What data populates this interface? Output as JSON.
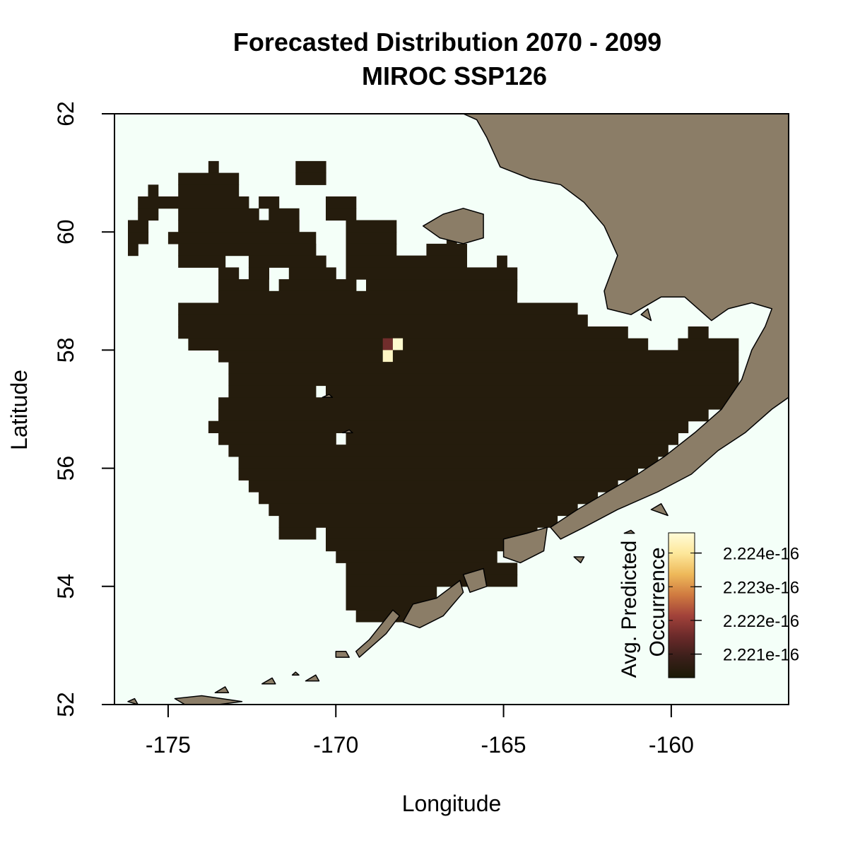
{
  "title": {
    "line1": "Forecasted Distribution 2070 - 2099",
    "line2": "MIROC SSP126"
  },
  "axes": {
    "xlabel": "Longitude",
    "ylabel": "Latitude",
    "xlim": [
      -176.6,
      -156.5
    ],
    "ylim": [
      52,
      62
    ],
    "x_ticks": [
      -175,
      -170,
      -165,
      -160
    ],
    "x_tick_labels": [
      "-175",
      "-170",
      "-165",
      "-160"
    ],
    "y_ticks": [
      52,
      54,
      56,
      58,
      60,
      62
    ],
    "y_tick_labels": [
      "52",
      "54",
      "56",
      "58",
      "60",
      "62"
    ]
  },
  "colors": {
    "ocean": "#f4fff8",
    "land": "#8b7d67",
    "coast_line": "#000000",
    "grid_low": "#1b1a07",
    "grid_mid": "#6b2a2a",
    "grid_high": "#fdf6c0"
  },
  "legend": {
    "title_line1": "Avg. Predicted",
    "title_line2": "Occurrence",
    "placement": "bottom-right",
    "tick_labels": [
      "2.224e-16",
      "2.223e-16",
      "2.222e-16",
      "2.221e-16"
    ],
    "tick_values": [
      2.224e-16,
      2.223e-16,
      2.222e-16,
      2.221e-16
    ],
    "range": [
      2.2203e-16,
      2.2246e-16
    ],
    "colormap": [
      "#1b1a07",
      "#3b1f1a",
      "#6b2a2a",
      "#a2423a",
      "#d07a40",
      "#eeb95a",
      "#fde79a",
      "#fffcd8"
    ]
  },
  "chart_data": {
    "type": "heatmap",
    "title": "Forecasted Distribution 2070 - 2099\nMIROC SSP126",
    "xlabel": "Longitude",
    "ylabel": "Latitude",
    "xlim": [
      -176.6,
      -156.5
    ],
    "ylim": [
      52,
      62
    ],
    "cell_size_deg": {
      "lon": 0.3,
      "lat": 0.2
    },
    "background_value": 2.2205e-16,
    "anomaly_cells": [
      {
        "lon": -168.6,
        "lat": 58.0,
        "value": 2.2216e-16
      },
      {
        "lon": -168.3,
        "lat": 58.0,
        "value": 2.2245e-16
      },
      {
        "lon": -168.6,
        "lat": 57.8,
        "value": 2.2244e-16
      }
    ],
    "region_rows": [
      {
        "lat": 61.0,
        "spans": [
          [
            -173.8,
            -173.5
          ],
          [
            -171.2,
            -170.3
          ]
        ]
      },
      {
        "lat": 60.8,
        "spans": [
          [
            -174.7,
            -172.9
          ],
          [
            -171.2,
            -170.3
          ]
        ]
      },
      {
        "lat": 60.6,
        "spans": [
          [
            -175.6,
            -175.3
          ],
          [
            -174.7,
            -172.9
          ]
        ]
      },
      {
        "lat": 60.4,
        "spans": [
          [
            -175.9,
            -172.6
          ],
          [
            -172.3,
            -171.7
          ],
          [
            -170.3,
            -169.4
          ]
        ]
      },
      {
        "lat": 60.2,
        "spans": [
          [
            -175.9,
            -175.3
          ],
          [
            -174.7,
            -172.3
          ],
          [
            -172.0,
            -171.1
          ],
          [
            -170.3,
            -169.4
          ]
        ]
      },
      {
        "lat": 60.0,
        "spans": [
          [
            -176.2,
            -175.6
          ],
          [
            -174.7,
            -171.1
          ],
          [
            -169.7,
            -168.2
          ]
        ]
      },
      {
        "lat": 59.8,
        "spans": [
          [
            -176.2,
            -175.6
          ],
          [
            -175.0,
            -170.6
          ],
          [
            -169.7,
            -168.2
          ],
          [
            -166.7,
            -166.4
          ]
        ]
      },
      {
        "lat": 59.6,
        "spans": [
          [
            -176.2,
            -175.9
          ],
          [
            -174.7,
            -170.6
          ],
          [
            -169.7,
            -168.2
          ],
          [
            -167.3,
            -166.1
          ]
        ]
      },
      {
        "lat": 59.4,
        "spans": [
          [
            -174.7,
            -173.3
          ],
          [
            -172.6,
            -170.3
          ],
          [
            -169.7,
            -166.1
          ],
          [
            -165.2,
            -164.9
          ]
        ]
      },
      {
        "lat": 59.2,
        "spans": [
          [
            -173.5,
            -172.9
          ],
          [
            -172.6,
            -172.0
          ],
          [
            -171.4,
            -170.0
          ],
          [
            -169.7,
            -164.6
          ]
        ]
      },
      {
        "lat": 59.0,
        "spans": [
          [
            -173.5,
            -172.0
          ],
          [
            -171.7,
            -169.4
          ],
          [
            -169.1,
            -164.6
          ]
        ]
      },
      {
        "lat": 58.8,
        "spans": [
          [
            -173.5,
            -164.6
          ]
        ]
      },
      {
        "lat": 58.6,
        "spans": [
          [
            -174.7,
            -162.8
          ]
        ]
      },
      {
        "lat": 58.4,
        "spans": [
          [
            -174.7,
            -162.5
          ]
        ]
      },
      {
        "lat": 58.2,
        "spans": [
          [
            -174.7,
            -161.3
          ],
          [
            -159.5,
            -158.9
          ]
        ]
      },
      {
        "lat": 58.0,
        "spans": [
          [
            -174.4,
            -160.7
          ],
          [
            -159.8,
            -158.0
          ]
        ]
      },
      {
        "lat": 57.8,
        "spans": [
          [
            -173.5,
            -158.0
          ]
        ]
      },
      {
        "lat": 57.6,
        "spans": [
          [
            -173.2,
            -158.0
          ]
        ]
      },
      {
        "lat": 57.4,
        "spans": [
          [
            -173.2,
            -158.0
          ]
        ]
      },
      {
        "lat": 57.2,
        "spans": [
          [
            -173.2,
            -170.6
          ],
          [
            -170.3,
            -158.0
          ]
        ]
      },
      {
        "lat": 57.0,
        "spans": [
          [
            -173.5,
            -158.3
          ]
        ]
      },
      {
        "lat": 56.8,
        "spans": [
          [
            -173.5,
            -158.9
          ]
        ]
      },
      {
        "lat": 56.6,
        "spans": [
          [
            -173.8,
            -159.5
          ]
        ]
      },
      {
        "lat": 56.4,
        "spans": [
          [
            -173.5,
            -170.0
          ],
          [
            -169.7,
            -159.8
          ]
        ]
      },
      {
        "lat": 56.2,
        "spans": [
          [
            -173.2,
            -160.1
          ]
        ]
      },
      {
        "lat": 56.0,
        "spans": [
          [
            -172.9,
            -160.4
          ]
        ]
      },
      {
        "lat": 55.8,
        "spans": [
          [
            -172.9,
            -161.0
          ]
        ]
      },
      {
        "lat": 55.6,
        "spans": [
          [
            -172.6,
            -161.6
          ]
        ]
      },
      {
        "lat": 55.4,
        "spans": [
          [
            -172.3,
            -162.2
          ]
        ]
      },
      {
        "lat": 55.2,
        "spans": [
          [
            -172.0,
            -162.8
          ]
        ]
      },
      {
        "lat": 55.0,
        "spans": [
          [
            -171.7,
            -163.4
          ]
        ]
      },
      {
        "lat": 54.8,
        "spans": [
          [
            -171.7,
            -170.6
          ],
          [
            -170.3,
            -164.0
          ]
        ]
      },
      {
        "lat": 54.6,
        "spans": [
          [
            -170.3,
            -164.6
          ]
        ]
      },
      {
        "lat": 54.4,
        "spans": [
          [
            -170.0,
            -165.2
          ]
        ]
      },
      {
        "lat": 54.2,
        "spans": [
          [
            -169.7,
            -164.6
          ]
        ]
      },
      {
        "lat": 54.0,
        "spans": [
          [
            -169.7,
            -164.6
          ]
        ]
      },
      {
        "lat": 53.8,
        "spans": [
          [
            -169.7,
            -167.0
          ]
        ]
      },
      {
        "lat": 53.6,
        "spans": [
          [
            -169.7,
            -167.0
          ]
        ]
      },
      {
        "lat": 53.4,
        "spans": [
          [
            -169.4,
            -167.3
          ]
        ]
      }
    ],
    "land_polygons": [
      {
        "name": "alaska-mainland",
        "points": [
          [
            -166.2,
            62.0
          ],
          [
            -156.5,
            62.0
          ],
          [
            -156.5,
            57.2
          ],
          [
            -157.0,
            57.0
          ],
          [
            -157.8,
            56.6
          ],
          [
            -158.6,
            56.3
          ],
          [
            -159.4,
            55.9
          ],
          [
            -160.4,
            55.6
          ],
          [
            -161.6,
            55.3
          ],
          [
            -162.6,
            55.0
          ],
          [
            -163.3,
            54.8
          ],
          [
            -163.6,
            55.0
          ],
          [
            -162.8,
            55.3
          ],
          [
            -161.9,
            55.6
          ],
          [
            -161.0,
            55.9
          ],
          [
            -160.2,
            56.2
          ],
          [
            -159.3,
            56.6
          ],
          [
            -158.5,
            57.0
          ],
          [
            -157.9,
            57.5
          ],
          [
            -157.6,
            58.0
          ],
          [
            -157.2,
            58.4
          ],
          [
            -157.0,
            58.7
          ],
          [
            -157.6,
            58.8
          ],
          [
            -158.3,
            58.7
          ],
          [
            -158.8,
            58.5
          ],
          [
            -159.6,
            58.9
          ],
          [
            -160.3,
            58.9
          ],
          [
            -161.2,
            58.6
          ],
          [
            -161.9,
            58.7
          ],
          [
            -162.0,
            59.0
          ],
          [
            -161.6,
            59.6
          ],
          [
            -162.0,
            60.1
          ],
          [
            -162.6,
            60.5
          ],
          [
            -163.3,
            60.8
          ],
          [
            -164.2,
            60.9
          ],
          [
            -165.1,
            61.1
          ],
          [
            -165.5,
            61.6
          ],
          [
            -165.8,
            61.9
          ]
        ]
      },
      {
        "name": "nunivak-island",
        "points": [
          [
            -166.8,
            60.3
          ],
          [
            -166.2,
            60.4
          ],
          [
            -165.6,
            60.3
          ],
          [
            -165.6,
            59.9
          ],
          [
            -166.2,
            59.8
          ],
          [
            -166.9,
            59.9
          ],
          [
            -167.4,
            60.1
          ]
        ]
      },
      {
        "name": "unimak-island",
        "points": [
          [
            -165.0,
            54.8
          ],
          [
            -164.3,
            54.9
          ],
          [
            -163.7,
            55.0
          ],
          [
            -163.8,
            54.6
          ],
          [
            -164.5,
            54.4
          ],
          [
            -165.0,
            54.5
          ]
        ]
      },
      {
        "name": "akutan-islands",
        "points": [
          [
            -166.2,
            54.2
          ],
          [
            -165.6,
            54.3
          ],
          [
            -165.5,
            54.0
          ],
          [
            -166.0,
            53.9
          ]
        ]
      },
      {
        "name": "unalaska-island",
        "points": [
          [
            -167.7,
            53.7
          ],
          [
            -167.0,
            53.8
          ],
          [
            -166.3,
            54.1
          ],
          [
            -166.2,
            53.9
          ],
          [
            -166.8,
            53.5
          ],
          [
            -167.5,
            53.3
          ],
          [
            -168.0,
            53.4
          ]
        ]
      },
      {
        "name": "umnak-island",
        "points": [
          [
            -169.3,
            52.8
          ],
          [
            -168.5,
            53.2
          ],
          [
            -168.1,
            53.5
          ],
          [
            -168.3,
            53.6
          ],
          [
            -169.0,
            53.1
          ],
          [
            -169.4,
            52.9
          ]
        ]
      },
      {
        "name": "islands-of-four-mountains",
        "points": [
          [
            -170.0,
            52.8
          ],
          [
            -169.6,
            52.8
          ],
          [
            -169.7,
            52.9
          ],
          [
            -170.0,
            52.9
          ]
        ]
      },
      {
        "name": "atka-island",
        "points": [
          [
            -174.8,
            52.1
          ],
          [
            -174.0,
            52.15
          ],
          [
            -173.4,
            52.1
          ],
          [
            -172.8,
            52.05
          ],
          [
            -173.5,
            52.0
          ],
          [
            -174.5,
            52.0
          ]
        ]
      },
      {
        "name": "amlia-island",
        "points": [
          [
            -173.6,
            52.2
          ],
          [
            -173.3,
            52.3
          ],
          [
            -173.2,
            52.2
          ]
        ]
      },
      {
        "name": "yunaska-island",
        "points": [
          [
            -172.2,
            52.35
          ],
          [
            -171.9,
            52.45
          ],
          [
            -171.8,
            52.35
          ]
        ]
      },
      {
        "name": "seguam-island",
        "points": [
          [
            -170.9,
            52.4
          ],
          [
            -170.6,
            52.5
          ],
          [
            -170.5,
            52.4
          ]
        ]
      },
      {
        "name": "amukta-island",
        "points": [
          [
            -171.3,
            52.5
          ],
          [
            -171.2,
            52.55
          ],
          [
            -171.1,
            52.5
          ]
        ]
      },
      {
        "name": "seal-island-west",
        "points": [
          [
            -176.2,
            52.05
          ],
          [
            -176.0,
            52.1
          ],
          [
            -175.9,
            52.0
          ]
        ]
      },
      {
        "name": "pribilof-st-george",
        "points": [
          [
            -169.8,
            56.6
          ],
          [
            -169.6,
            56.65
          ],
          [
            -169.5,
            56.6
          ]
        ]
      },
      {
        "name": "pribilof-st-paul",
        "points": [
          [
            -170.4,
            57.2
          ],
          [
            -170.2,
            57.25
          ],
          [
            -170.1,
            57.2
          ]
        ]
      },
      {
        "name": "sanak-islands",
        "points": [
          [
            -162.9,
            54.5
          ],
          [
            -162.6,
            54.5
          ],
          [
            -162.7,
            54.4
          ]
        ]
      },
      {
        "name": "shumagin-islands",
        "points": [
          [
            -160.6,
            55.3
          ],
          [
            -160.3,
            55.4
          ],
          [
            -160.1,
            55.2
          ]
        ]
      },
      {
        "name": "semidi-islands",
        "points": [
          [
            -161.4,
            54.9
          ],
          [
            -161.2,
            54.95
          ],
          [
            -161.1,
            54.9
          ]
        ]
      },
      {
        "name": "hagemeister-island",
        "points": [
          [
            -160.9,
            58.6
          ],
          [
            -160.7,
            58.7
          ],
          [
            -160.6,
            58.5
          ]
        ]
      }
    ]
  }
}
